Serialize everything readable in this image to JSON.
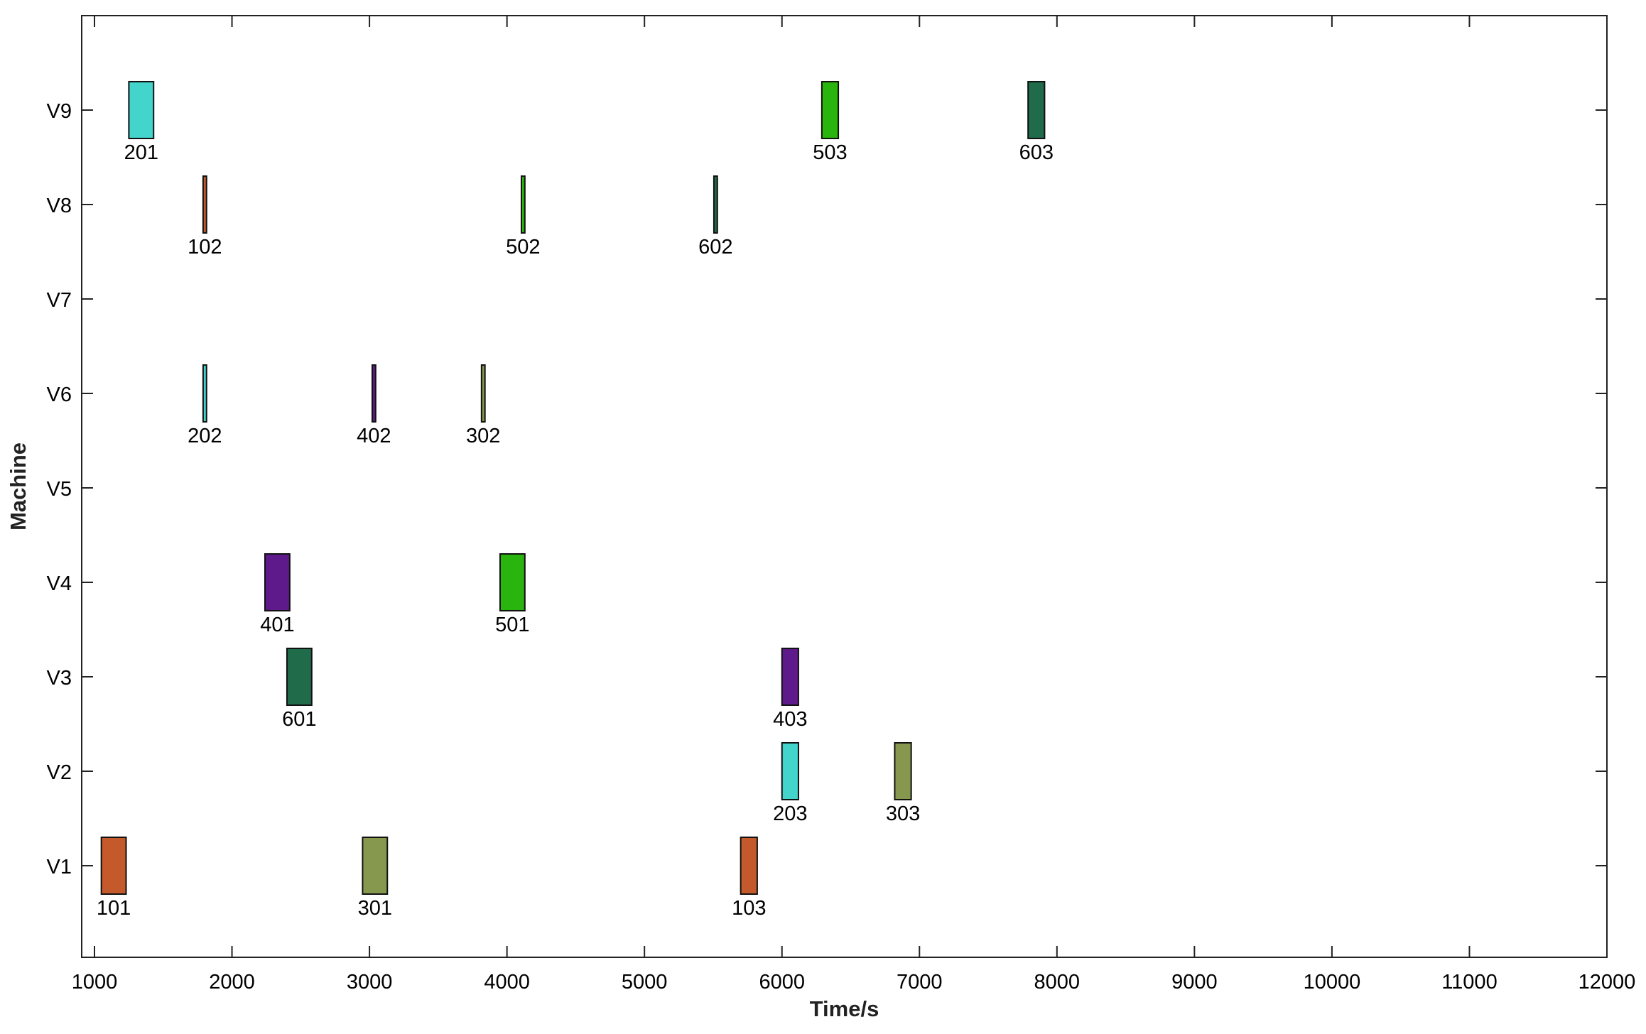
{
  "chart_data": {
    "type": "gantt",
    "title": "",
    "xlabel": "Time/s",
    "ylabel": "Machine",
    "xlim": [
      1000,
      12000
    ],
    "x_ticks": [
      1000,
      2000,
      3000,
      4000,
      5000,
      6000,
      7000,
      8000,
      9000,
      10000,
      11000,
      12000
    ],
    "x_tick_labels": [
      "1000",
      "2000",
      "3000",
      "4000",
      "5000",
      "6000",
      "7000",
      "8000",
      "9000",
      "10000",
      "11000",
      "12000"
    ],
    "machines": [
      "V1",
      "V2",
      "V3",
      "V4",
      "V5",
      "V6",
      "V7",
      "V8",
      "V9"
    ],
    "grid": false,
    "series_colors": {
      "1": "#c45a2b",
      "2": "#43d4cc",
      "3": "#86984e",
      "4": "#5e1a8a",
      "5": "#2ab40e",
      "6": "#1f6b4a"
    },
    "tasks": [
      {
        "label": "101",
        "job": "1",
        "machine": "V1",
        "start": 1050,
        "end": 1230
      },
      {
        "label": "301",
        "job": "3",
        "machine": "V1",
        "start": 2950,
        "end": 3130
      },
      {
        "label": "103",
        "job": "1",
        "machine": "V1",
        "start": 5700,
        "end": 5820
      },
      {
        "label": "203",
        "job": "2",
        "machine": "V2",
        "start": 6000,
        "end": 6120
      },
      {
        "label": "303",
        "job": "3",
        "machine": "V2",
        "start": 6820,
        "end": 6940
      },
      {
        "label": "601",
        "job": "6",
        "machine": "V3",
        "start": 2400,
        "end": 2580
      },
      {
        "label": "403",
        "job": "4",
        "machine": "V3",
        "start": 6000,
        "end": 6120
      },
      {
        "label": "401",
        "job": "4",
        "machine": "V4",
        "start": 2240,
        "end": 2420
      },
      {
        "label": "501",
        "job": "5",
        "machine": "V4",
        "start": 3950,
        "end": 4130
      },
      {
        "label": "202",
        "job": "2",
        "machine": "V6",
        "start": 1790,
        "end": 1815
      },
      {
        "label": "402",
        "job": "4",
        "machine": "V6",
        "start": 3020,
        "end": 3045
      },
      {
        "label": "302",
        "job": "3",
        "machine": "V6",
        "start": 3815,
        "end": 3840
      },
      {
        "label": "102",
        "job": "1",
        "machine": "V8",
        "start": 1790,
        "end": 1815
      },
      {
        "label": "502",
        "job": "5",
        "machine": "V8",
        "start": 4105,
        "end": 4130
      },
      {
        "label": "602",
        "job": "6",
        "machine": "V8",
        "start": 5505,
        "end": 5530
      },
      {
        "label": "201",
        "job": "2",
        "machine": "V9",
        "start": 1250,
        "end": 1430
      },
      {
        "label": "503",
        "job": "5",
        "machine": "V9",
        "start": 6290,
        "end": 6410
      },
      {
        "label": "603",
        "job": "6",
        "machine": "V9",
        "start": 7790,
        "end": 7910
      }
    ]
  }
}
